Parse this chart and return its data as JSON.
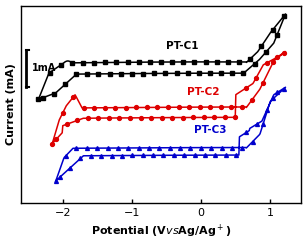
{
  "ylabel": "Current (mA)",
  "xlim": [
    -2.6,
    1.45
  ],
  "ylim": [
    -1.05,
    1.05
  ],
  "xticks": [
    -2,
    -1,
    0,
    1
  ],
  "scale_bar_label": "1mA",
  "background_color": "#ffffff",
  "colors": {
    "PT-C1": "#000000",
    "PT-C2": "#dd0000",
    "PT-C3": "#0000cc"
  },
  "label_pos": {
    "PT-C1": [
      -0.5,
      0.62
    ],
    "PT-C2": [
      -0.2,
      0.13
    ],
    "PT-C3": [
      -0.1,
      -0.28
    ]
  }
}
